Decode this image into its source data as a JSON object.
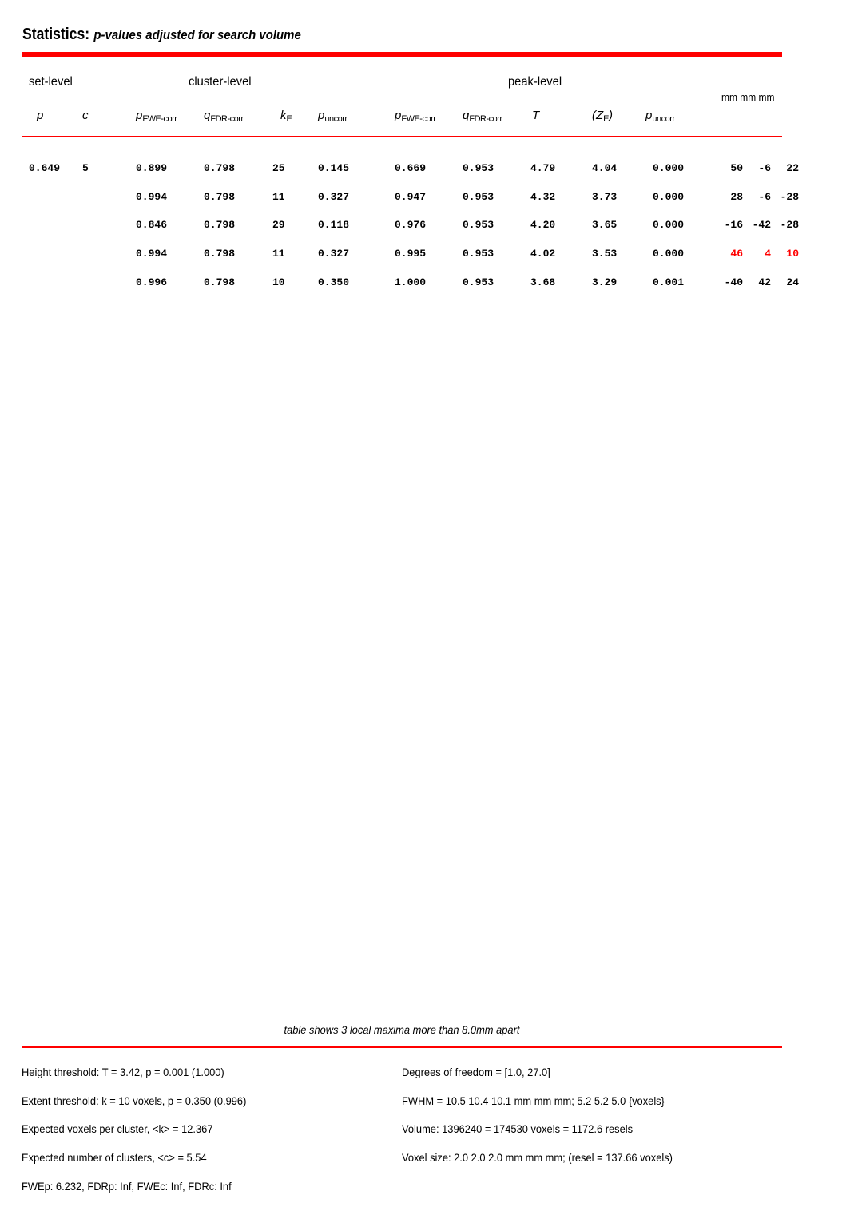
{
  "header": {
    "title": "Statistics:",
    "subtitle": "p-values adjusted for search volume"
  },
  "groups": {
    "set": "set-level",
    "cluster": "cluster-level",
    "peak": "peak-level",
    "coords": "mm mm mm"
  },
  "columns": {
    "set_p": "p",
    "set_c": "c",
    "cl_pfwe_base": "p",
    "cl_pfwe_sub": "FWE-corr",
    "cl_qfdr_base": "q",
    "cl_qfdr_sub": "FDR-corr",
    "cl_k_base": "k",
    "cl_k_sub": "E",
    "cl_punc_base": "p",
    "cl_punc_sub": "uncorr",
    "pk_pfwe_base": "p",
    "pk_pfwe_sub": "FWE-corr",
    "pk_qfdr_base": "q",
    "pk_qfdr_sub": "FDR-corr",
    "pk_t": "T",
    "pk_z_open": "(Z",
    "pk_z_sub": "E",
    "pk_z_close": ")",
    "pk_punc_base": "p",
    "pk_punc_sub": "uncorr"
  },
  "rows": [
    {
      "set_p": "0.649",
      "set_c": "5",
      "cl_pfwe": "0.899",
      "cl_qfdr": "0.798",
      "k": "25",
      "cl_punc": "0.145",
      "pk_pfwe": "0.669",
      "pk_qfdr": "0.953",
      "t": "4.79",
      "z": "4.04",
      "pk_punc": "0.000",
      "x": "50",
      "y": "-6",
      "zc": "22"
    },
    {
      "set_p": "",
      "set_c": "",
      "cl_pfwe": "0.994",
      "cl_qfdr": "0.798",
      "k": "11",
      "cl_punc": "0.327",
      "pk_pfwe": "0.947",
      "pk_qfdr": "0.953",
      "t": "4.32",
      "z": "3.73",
      "pk_punc": "0.000",
      "x": "28",
      "y": "-6",
      "zc": "-28"
    },
    {
      "set_p": "",
      "set_c": "",
      "cl_pfwe": "0.846",
      "cl_qfdr": "0.798",
      "k": "29",
      "cl_punc": "0.118",
      "pk_pfwe": "0.976",
      "pk_qfdr": "0.953",
      "t": "4.20",
      "z": "3.65",
      "pk_punc": "0.000",
      "x": "-16",
      "y": "-42",
      "zc": "-28"
    },
    {
      "set_p": "",
      "set_c": "",
      "cl_pfwe": "0.994",
      "cl_qfdr": "0.798",
      "k": "11",
      "cl_punc": "0.327",
      "pk_pfwe": "0.995",
      "pk_qfdr": "0.953",
      "t": "4.02",
      "z": "3.53",
      "pk_punc": "0.000",
      "x": "46",
      "y": "4",
      "zc": "10",
      "highlight": true
    },
    {
      "set_p": "",
      "set_c": "",
      "cl_pfwe": "0.996",
      "cl_qfdr": "0.798",
      "k": "10",
      "cl_punc": "0.350",
      "pk_pfwe": "1.000",
      "pk_qfdr": "0.953",
      "t": "3.68",
      "z": "3.29",
      "pk_punc": "0.001",
      "x": "-40",
      "y": "42",
      "zc": "24"
    }
  ],
  "highlight_color": "#ff0000",
  "note": "table shows 3 local maxima more than 8.0mm apart",
  "footer": {
    "left": [
      "Height threshold: T = 3.42, p = 0.001 (1.000)",
      "Extent threshold: k = 10 voxels, p = 0.350 (0.996)",
      "Expected voxels per cluster, <k> = 12.367",
      "Expected number of clusters, <c> = 5.54",
      "FWEp: 6.232, FDRp: Inf, FWEc: Inf, FDRc: Inf"
    ],
    "right": [
      "Degrees of freedom = [1.0, 27.0]",
      "FWHM = 10.5 10.4 10.1 mm mm mm; 5.2 5.2 5.0 {voxels}",
      "Volume: 1396240 = 174530 voxels = 1172.6 resels",
      "Voxel size: 2.0 2.0 2.0 mm mm mm; (resel = 137.66 voxels)"
    ]
  }
}
